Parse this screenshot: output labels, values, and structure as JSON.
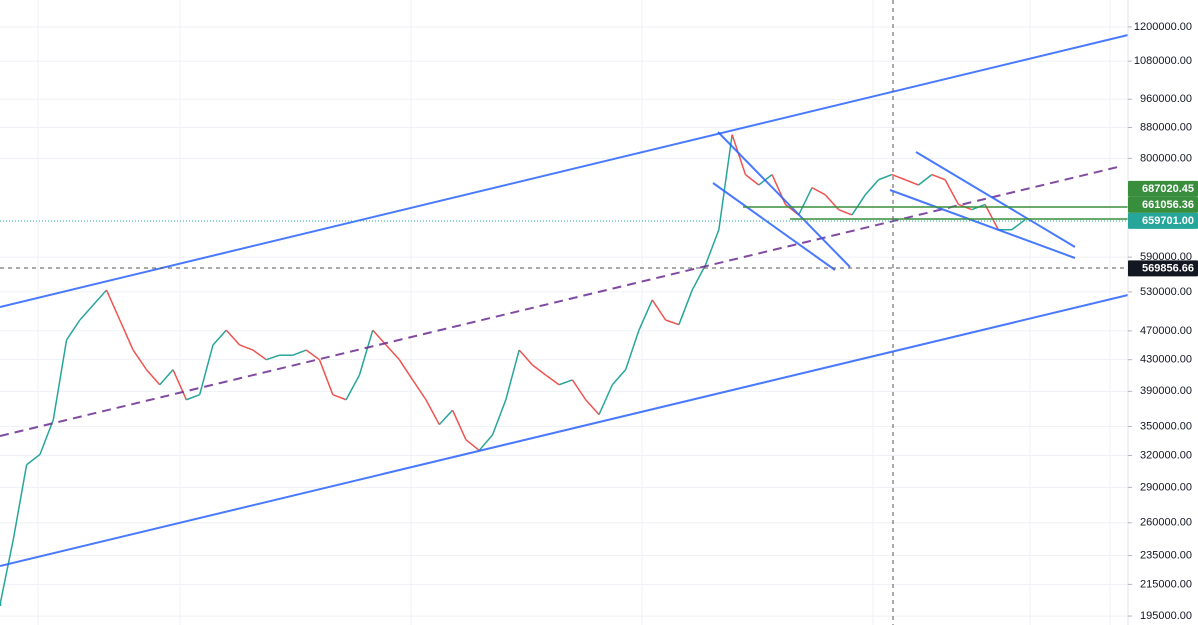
{
  "chart_data": {
    "type": "line",
    "log_scale": true,
    "grid": true,
    "ylim": [
      189700,
      1304000
    ],
    "yticks": [
      {
        "value": 195000,
        "label": "195000.00"
      },
      {
        "value": 215000,
        "label": "215000.00"
      },
      {
        "value": 235000,
        "label": "235000.00"
      },
      {
        "value": 260000,
        "label": "260000.00"
      },
      {
        "value": 290000,
        "label": "290000.00"
      },
      {
        "value": 320000,
        "label": "320000.00"
      },
      {
        "value": 350000,
        "label": "350000.00"
      },
      {
        "value": 390000,
        "label": "390000.00"
      },
      {
        "value": 430000,
        "label": "430000.00"
      },
      {
        "value": 470000,
        "label": "470000.00"
      },
      {
        "value": 530000,
        "label": "530000.00"
      },
      {
        "value": 590000,
        "label": "590000.00"
      },
      {
        "value": 800000,
        "label": "800000.00"
      },
      {
        "value": 880000,
        "label": "880000.00"
      },
      {
        "value": 960000,
        "label": "960000.00"
      },
      {
        "value": 1080000,
        "label": "1080000.00"
      },
      {
        "value": 1200000,
        "label": "1200000.00"
      }
    ],
    "price_labels": [
      {
        "value": 687020.45,
        "label": "687020.45",
        "color": "#388e3c"
      },
      {
        "value": 661056.36,
        "label": "661056.36",
        "color": "#388e3c"
      },
      {
        "value": 659701.0,
        "label": "659701.00",
        "color": "#26a69a"
      },
      {
        "value": 569856.66,
        "label": "569856.66",
        "color": "#131722"
      }
    ],
    "up_color": "#26a69a",
    "down_color": "#ef5350",
    "series": [
      {
        "values": [
          202000,
          247000,
          311000,
          321000,
          357000,
          457000,
          486000,
          509000,
          533000,
          486000,
          443000,
          417000,
          398000,
          417000,
          380000,
          386000,
          450000,
          471000,
          450000,
          443000,
          430000,
          436000,
          436000,
          443000,
          430000,
          386000,
          380000,
          410000,
          471000,
          450000,
          430000,
          404000,
          380000,
          352000,
          368000,
          336000,
          325000,
          341000,
          380000,
          443000,
          423000,
          410000,
          398000,
          404000,
          380000,
          363000,
          398000,
          417000,
          471000,
          517000,
          486000,
          479000,
          533000,
          576000,
          642000,
          861000,
          761000,
          737000,
          761000,
          694000,
          672000,
          731000,
          715000,
          683000,
          672000,
          715000,
          749000,
          761000,
          749000,
          737000,
          761000,
          749000,
          694000,
          683000,
          694000,
          642000,
          642000,
          662000
        ]
      }
    ]
  }
}
